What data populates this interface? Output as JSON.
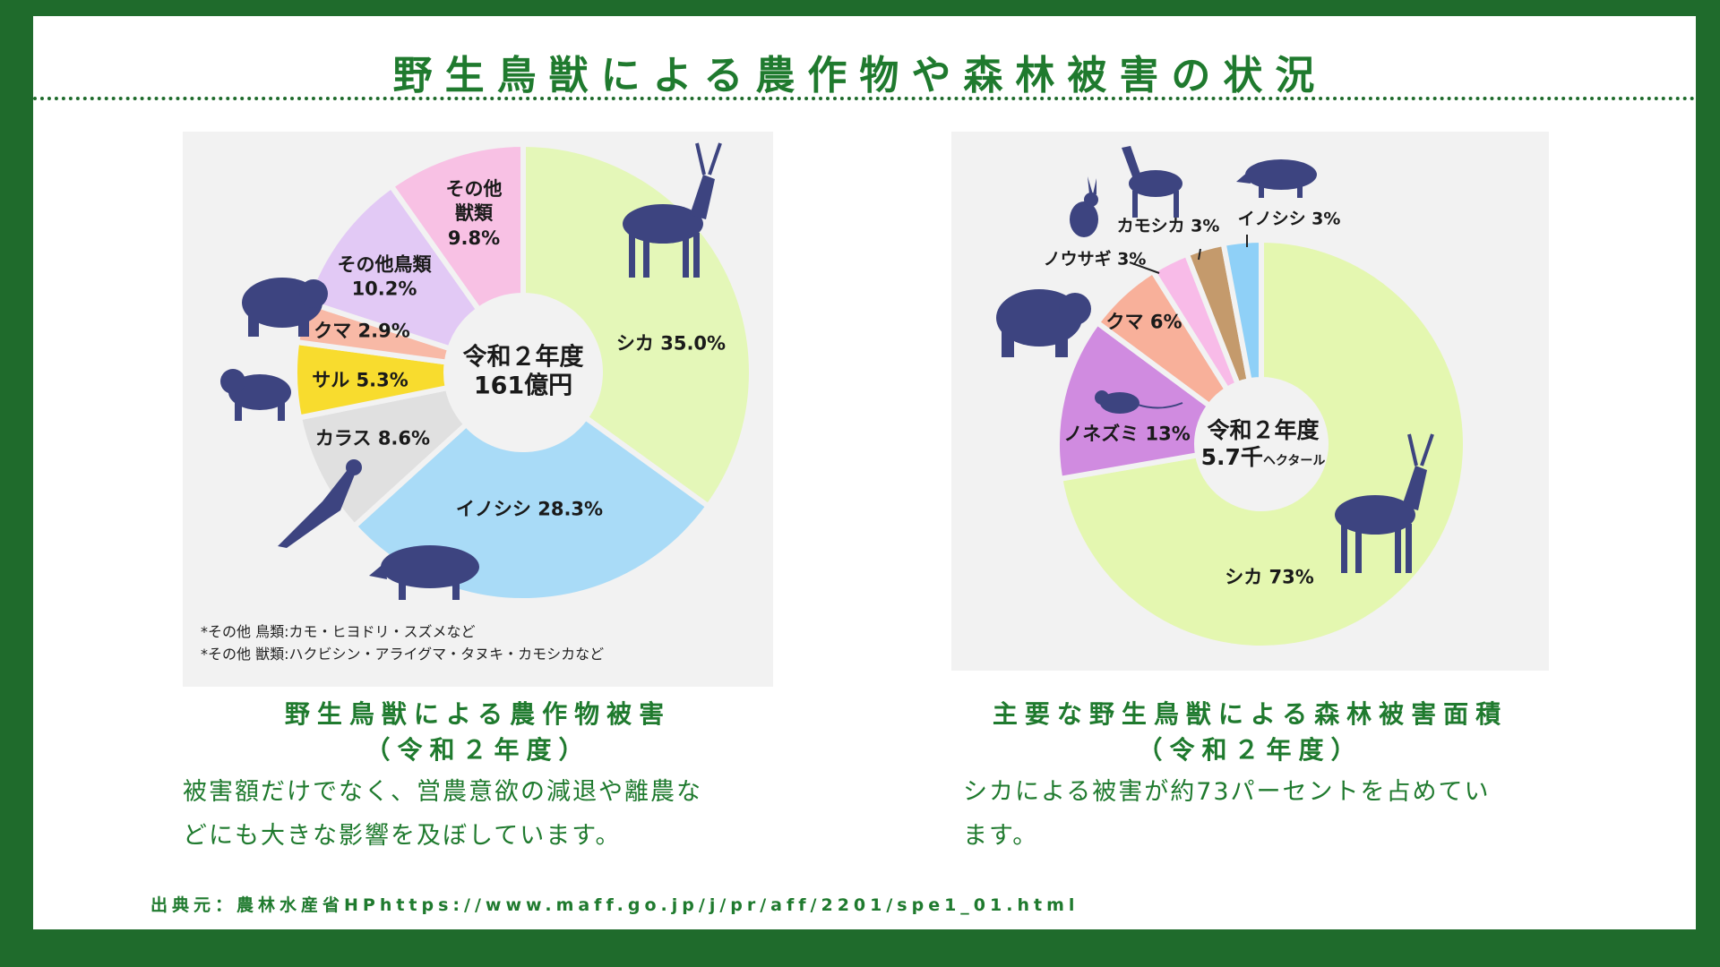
{
  "title": "野生鳥獣による農作物や森林被害の状況",
  "colors": {
    "green": "#1f7a2e",
    "animal": "#3d4480"
  },
  "chart_data": [
    {
      "type": "pie",
      "title": "野生鳥獣による農作物被害",
      "center_label": [
        "令和２年度",
        "161億円"
      ],
      "categories": [
        "シカ",
        "イノシシ",
        "カラス",
        "サル",
        "クマ",
        "その他鳥類",
        "その他獣類"
      ],
      "values": [
        35.0,
        28.3,
        8.6,
        5.3,
        2.9,
        10.2,
        9.8
      ],
      "labels": [
        "シカ 35.0%",
        "イノシシ 28.3%",
        "カラス 8.6%",
        "サル 5.3%",
        "クマ 2.9%",
        "その他鳥類 10.2%",
        "その他 獣類 9.8%"
      ],
      "colors": [
        "#e4f7b8",
        "#a9dbf7",
        "#e0e0e0",
        "#f8dc2e",
        "#f8b9a6",
        "#e2c9f5",
        "#f8c1e4"
      ],
      "footnotes": [
        "*その他 鳥類:カモ・ヒヨドリ・スズメなど",
        "*その他 獣類:ハクビシン・アライグマ・タヌキ・カモシカなど"
      ]
    },
    {
      "type": "pie",
      "title": "主要な野生鳥獣による森林被害面積",
      "center_label": [
        "令和２年度",
        "5.7千",
        "ヘクタール"
      ],
      "categories": [
        "シカ",
        "ノネズミ",
        "クマ",
        "ノウサギ",
        "カモシカ",
        "イノシシ"
      ],
      "values": [
        73,
        13,
        6,
        3,
        3,
        3
      ],
      "labels": [
        "シカ 73%",
        "ノネズミ 13%",
        "クマ 6%",
        "ノウサギ 3%",
        "カモシカ 3%",
        "イノシシ 3%"
      ],
      "colors": [
        "#e4f7b0",
        "#d08be0",
        "#f8b09a",
        "#f8bbe8",
        "#c49a6c",
        "#8fd0f7"
      ]
    }
  ],
  "left": {
    "caption": "野生鳥獣による農作物被害",
    "sub": "（令和２年度）",
    "body": [
      "被害額だけでなく、営農意欲の減退や離農な",
      "どにも大きな影響を及ぼしています。"
    ]
  },
  "right": {
    "caption": "主要な野生鳥獣による森林被害面積",
    "sub": "（令和２年度）",
    "body": [
      "シカによる被害が約73パーセントを占めてい",
      "ます。"
    ]
  },
  "source": "出典元：農林水産省HPhttps://www.maff.go.jp/j/pr/aff/2201/spe1_01.html"
}
